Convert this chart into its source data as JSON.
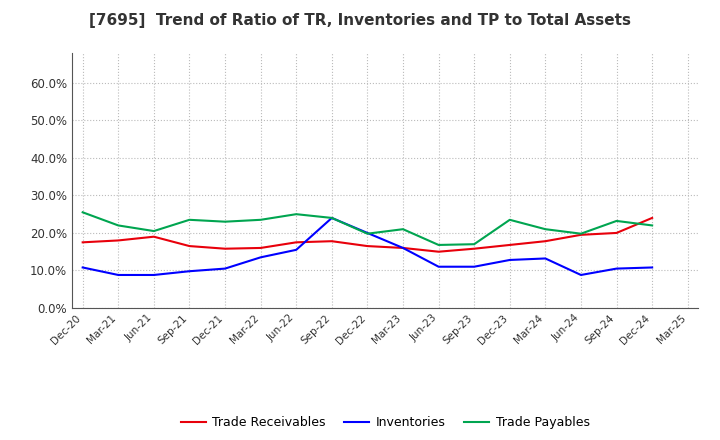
{
  "title": "[7695]  Trend of Ratio of TR, Inventories and TP to Total Assets",
  "x_labels": [
    "Dec-20",
    "Mar-21",
    "Jun-21",
    "Sep-21",
    "Dec-21",
    "Mar-22",
    "Jun-22",
    "Sep-22",
    "Dec-22",
    "Mar-23",
    "Jun-23",
    "Sep-23",
    "Dec-23",
    "Mar-24",
    "Jun-24",
    "Sep-24",
    "Dec-24",
    "Mar-25"
  ],
  "trade_receivables": [
    0.175,
    0.18,
    0.19,
    0.165,
    0.158,
    0.16,
    0.175,
    0.178,
    0.165,
    0.16,
    0.15,
    0.158,
    0.168,
    0.178,
    0.195,
    0.2,
    0.24,
    null
  ],
  "inventories": [
    0.108,
    0.088,
    0.088,
    0.098,
    0.105,
    0.135,
    0.155,
    0.24,
    0.2,
    0.16,
    0.11,
    0.11,
    0.128,
    0.132,
    0.088,
    0.105,
    0.108,
    null
  ],
  "trade_payables": [
    0.255,
    0.22,
    0.205,
    0.235,
    0.23,
    0.235,
    0.25,
    0.24,
    0.198,
    0.21,
    0.168,
    0.17,
    0.235,
    0.21,
    0.198,
    0.232,
    0.22,
    null
  ],
  "trade_receivables_color": "#e8000b",
  "inventories_color": "#0000ff",
  "trade_payables_color": "#00a550",
  "ylim": [
    0.0,
    0.68
  ],
  "yticks": [
    0.0,
    0.1,
    0.2,
    0.3,
    0.4,
    0.5,
    0.6
  ],
  "ytick_labels": [
    "0.0%",
    "10.0%",
    "20.0%",
    "30.0%",
    "40.0%",
    "50.0%",
    "60.0%"
  ],
  "background_color": "#ffffff",
  "grid_color": "#bbbbbb",
  "legend_labels": [
    "Trade Receivables",
    "Inventories",
    "Trade Payables"
  ]
}
